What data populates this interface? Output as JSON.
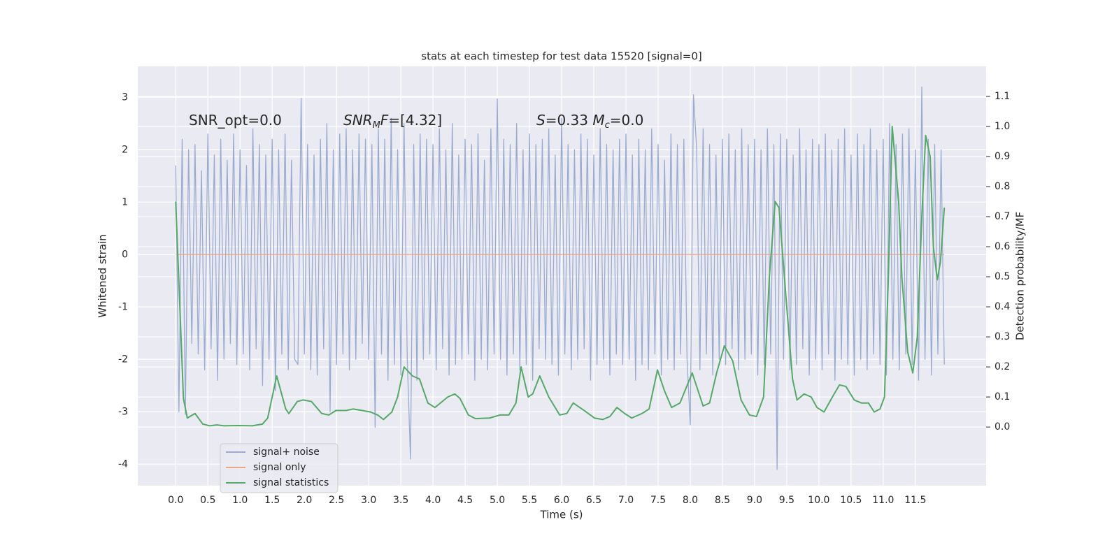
{
  "chart_data": {
    "type": "line",
    "title": "stats at each timestep for test data 15520 [signal=0]",
    "xlabel": "Time (s)",
    "ylabel": "Whitened strain",
    "y2label": "Detection probability/MF",
    "grid": true,
    "legend": "lower left",
    "xlim": [
      -0.59,
      12.6
    ],
    "ylim": [
      -4.41,
      3.59
    ],
    "y2lim": [
      -0.195,
      1.2
    ],
    "xticks": [
      {
        "value": 0,
        "label": "0.0"
      },
      0.5,
      {
        "value": 1,
        "label": "1.0"
      },
      1.5,
      {
        "value": 2,
        "label": "2.0"
      },
      2.5,
      {
        "value": 3,
        "label": "3.0"
      },
      3.5,
      {
        "value": 4,
        "label": "4.0"
      },
      4.5,
      {
        "value": 5,
        "label": "5.0"
      },
      5.5,
      {
        "value": 6,
        "label": "6.0"
      },
      6.5,
      {
        "value": 7,
        "label": "7.0"
      },
      7.5,
      {
        "value": 8,
        "label": "8.0"
      },
      8.5,
      {
        "value": 9,
        "label": "9.0"
      },
      9.5,
      {
        "value": 10,
        "label": "10.0"
      },
      10.5,
      {
        "value": 11,
        "label": "11.0"
      },
      11.5
    ],
    "yticks": [
      -4,
      -3,
      -2,
      -1,
      0,
      1,
      2,
      3
    ],
    "y2ticks": [
      {
        "value": 0,
        "label": "0.0"
      },
      0.1,
      0.2,
      0.3,
      0.4,
      0.5,
      0.6,
      0.7,
      0.8,
      0.9,
      {
        "value": 1,
        "label": "1.0"
      },
      1.1
    ],
    "annotations": [
      [
        {
          "text": "SNR_opt=0.0"
        }
      ],
      [
        {
          "text": "SNR",
          "italic": true
        },
        {
          "text": "M",
          "italic": true,
          "sub": true
        },
        {
          "text": "F",
          "italic": true
        },
        {
          "text": "=[4.32]"
        }
      ],
      [
        {
          "text": "S",
          "italic": true
        },
        {
          "text": "=0.33   "
        },
        {
          "text": "M",
          "italic": true
        },
        {
          "text": "c",
          "italic": true,
          "sub": true
        },
        {
          "text": "=0.0"
        }
      ]
    ],
    "series": [
      {
        "name": "signal+ noise",
        "color": "#9aabd0",
        "x": [
          0,
          0.05,
          0.1,
          0.15,
          0.2,
          0.25,
          0.3,
          0.35,
          0.4,
          0.45,
          0.5,
          0.55,
          0.6,
          0.65,
          0.7,
          0.75,
          0.8,
          0.85,
          0.9,
          0.95,
          1,
          1.05,
          1.1,
          1.15,
          1.2,
          1.25,
          1.3,
          1.35,
          1.4,
          1.45,
          1.5,
          1.55,
          1.6,
          1.65,
          1.7,
          1.75,
          1.8,
          1.85,
          1.9,
          1.95,
          2,
          2.05,
          2.1,
          2.15,
          2.2,
          2.25,
          2.3,
          2.35,
          2.4,
          2.45,
          2.5,
          2.55,
          2.6,
          2.65,
          2.7,
          2.75,
          2.8,
          2.85,
          2.9,
          2.95,
          3,
          3.05,
          3.1,
          3.15,
          3.2,
          3.25,
          3.3,
          3.35,
          3.4,
          3.45,
          3.5,
          3.55,
          3.6,
          3.65,
          3.7,
          3.75,
          3.8,
          3.85,
          3.9,
          3.95,
          4,
          4.05,
          4.1,
          4.15,
          4.2,
          4.25,
          4.3,
          4.35,
          4.4,
          4.45,
          4.5,
          4.55,
          4.6,
          4.65,
          4.7,
          4.75,
          4.8,
          4.85,
          4.9,
          4.95,
          5,
          5.05,
          5.1,
          5.15,
          5.2,
          5.25,
          5.3,
          5.35,
          5.4,
          5.45,
          5.5,
          5.55,
          5.6,
          5.65,
          5.7,
          5.75,
          5.8,
          5.85,
          5.9,
          5.95,
          6,
          6.05,
          6.1,
          6.15,
          6.2,
          6.25,
          6.3,
          6.35,
          6.4,
          6.45,
          6.5,
          6.55,
          6.6,
          6.65,
          6.7,
          6.75,
          6.8,
          6.85,
          6.9,
          6.95,
          7,
          7.05,
          7.1,
          7.15,
          7.2,
          7.25,
          7.3,
          7.35,
          7.4,
          7.45,
          7.5,
          7.55,
          7.6,
          7.65,
          7.7,
          7.75,
          7.8,
          7.85,
          7.9,
          7.95,
          8,
          8.05,
          8.1,
          8.15,
          8.2,
          8.25,
          8.3,
          8.35,
          8.4,
          8.45,
          8.5,
          8.55,
          8.6,
          8.65,
          8.7,
          8.75,
          8.8,
          8.85,
          8.9,
          8.95,
          9,
          9.05,
          9.1,
          9.15,
          9.2,
          9.25,
          9.3,
          9.35,
          9.4,
          9.45,
          9.5,
          9.55,
          9.6,
          9.65,
          9.7,
          9.75,
          9.8,
          9.85,
          9.9,
          9.95,
          10,
          10.05,
          10.1,
          10.15,
          10.2,
          10.25,
          10.3,
          10.35,
          10.4,
          10.45,
          10.5,
          10.55,
          10.6,
          10.65,
          10.7,
          10.75,
          10.8,
          10.85,
          10.9,
          10.95,
          11,
          11.05,
          11.1,
          11.15,
          11.2,
          11.25,
          11.3,
          11.35,
          11.4,
          11.45,
          11.5,
          11.55,
          11.6,
          11.65,
          11.7,
          11.75,
          11.8,
          11.85,
          11.9,
          11.95
        ],
        "values": [
          1.7,
          -3.0,
          2.2,
          -3.05,
          2.0,
          -1.7,
          2.1,
          -1.9,
          1.6,
          -2.2,
          2.3,
          -1.8,
          1.9,
          -2.4,
          2.2,
          -2.0,
          1.8,
          -1.7,
          2.3,
          -2.1,
          2.0,
          -1.9,
          1.7,
          -2.2,
          2.4,
          -1.8,
          2.1,
          -2.5,
          1.9,
          -2.0,
          2.2,
          -2.6,
          2.0,
          -1.9,
          2.3,
          -2.2,
          1.8,
          -2.0,
          -2.1,
          2.98,
          -1.9,
          2.1,
          -2.2,
          1.9,
          -2.3,
          2.2,
          -1.8,
          2.5,
          -3.0,
          2.0,
          -2.1,
          2.3,
          -1.9,
          2.4,
          -2.2,
          2.0,
          -2.0,
          2.3,
          -1.7,
          2.2,
          -2.0,
          2.1,
          -3.3,
          2.4,
          -1.9,
          2.2,
          -2.4,
          2.6,
          -2.1,
          2.0,
          -2.3,
          2.5,
          -2.0,
          -3.9,
          2.1,
          -2.4,
          2.3,
          -2.0,
          2.2,
          -1.9,
          2.1,
          -2.2,
          2.4,
          -1.8,
          2.0,
          -2.3,
          2.5,
          -2.1,
          1.9,
          -2.0,
          2.2,
          -1.9,
          2.1,
          -2.4,
          2.3,
          -2.0,
          1.8,
          -2.2,
          2.4,
          -1.9,
          2.97,
          -2.0,
          2.2,
          -2.3,
          2.1,
          -1.9,
          2.5,
          -2.2,
          2.0,
          -2.1,
          2.3,
          -2.4,
          2.1,
          -1.8,
          2.2,
          -2.0,
          2.4,
          -2.1,
          1.9,
          -2.3,
          2.6,
          -1.9,
          2.1,
          -2.2,
          2.0,
          -2.0,
          2.3,
          -1.8,
          2.2,
          -2.4,
          1.9,
          -2.1,
          2.4,
          -2.0,
          2.1,
          -2.3,
          2.0,
          -1.9,
          2.2,
          -2.1,
          2.3,
          -2.0,
          1.9,
          -2.4,
          2.2,
          -2.1,
          2.0,
          -2.2,
          2.4,
          -1.9,
          2.1,
          -2.3,
          1.8,
          -2.0,
          2.3,
          -2.2,
          2.1,
          -1.9,
          2.2,
          -2.0,
          -3.25,
          3.05,
          2.0,
          -2.2,
          2.4,
          -1.9,
          2.1,
          -2.3,
          1.9,
          -2.0,
          2.2,
          -2.1,
          2.3,
          -1.8,
          2.0,
          -2.2,
          2.4,
          -2.0,
          2.1,
          -1.9,
          2.2,
          -2.3,
          2.0,
          -2.1,
          2.4,
          -1.9,
          2.1,
          -4.1,
          2.3,
          -2.0,
          2.2,
          -2.2,
          1.9,
          -2.1,
          2.4,
          -1.8,
          2.0,
          -2.3,
          2.2,
          -2.0,
          2.1,
          -2.2,
          2.3,
          -1.9,
          2.0,
          -2.4,
          2.2,
          -2.0,
          2.4,
          -2.1,
          1.9,
          -2.3,
          2.3,
          -2.0,
          2.1,
          -2.2,
          2.4,
          -1.9,
          2.0,
          -2.1,
          2.2,
          -2.3,
          2.5,
          -2.0,
          2.1,
          -2.2,
          2.3,
          -1.9,
          2.4,
          -2.1,
          2.0,
          -2.4,
          3.2,
          -2.0,
          2.2,
          -2.3,
          2.1,
          -1.9,
          2.0,
          -2.1
        ]
      },
      {
        "name": "signal only",
        "color": "#e9a88a",
        "x": [
          0,
          11.95
        ],
        "values": [
          0,
          0
        ]
      },
      {
        "name": "signal statistics",
        "color": "#55a868",
        "axis": "y2",
        "x": [
          0,
          0.12,
          0.18,
          0.3,
          0.42,
          0.53,
          0.64,
          0.75,
          0.97,
          1.19,
          1.35,
          1.43,
          1.57,
          1.71,
          1.76,
          1.89,
          1.98,
          2.11,
          2.27,
          2.38,
          2.49,
          2.65,
          2.76,
          2.9,
          3.03,
          3.14,
          3.23,
          3.36,
          3.45,
          3.55,
          3.68,
          3.79,
          3.92,
          4.03,
          4.23,
          4.34,
          4.42,
          4.55,
          4.66,
          4.88,
          5.04,
          5.18,
          5.29,
          5.37,
          5.48,
          5.55,
          5.66,
          5.8,
          5.97,
          6.08,
          6.18,
          6.35,
          6.51,
          6.64,
          6.75,
          6.86,
          6.98,
          7.09,
          7.25,
          7.36,
          7.49,
          7.6,
          7.71,
          7.84,
          8.03,
          8.2,
          8.3,
          8.41,
          8.53,
          8.66,
          8.79,
          8.92,
          9.03,
          9.14,
          9.23,
          9.32,
          9.38,
          9.5,
          9.59,
          9.66,
          9.77,
          9.88,
          9.97,
          10.08,
          10.21,
          10.32,
          10.42,
          10.55,
          10.66,
          10.77,
          10.86,
          10.95,
          11.02,
          11.08,
          11.14,
          11.24,
          11.29,
          11.38,
          11.46,
          11.53,
          11.6,
          11.66,
          11.73,
          11.78,
          11.84,
          11.89,
          11.95
        ],
        "values": [
          0.75,
          0.095,
          0.03,
          0.045,
          0.01,
          0.004,
          0.007,
          0.004,
          0.005,
          0.004,
          0.01,
          0.03,
          0.17,
          0.06,
          0.045,
          0.085,
          0.09,
          0.085,
          0.045,
          0.04,
          0.055,
          0.055,
          0.06,
          0.055,
          0.05,
          0.04,
          0.025,
          0.05,
          0.1,
          0.2,
          0.17,
          0.16,
          0.08,
          0.065,
          0.1,
          0.11,
          0.095,
          0.04,
          0.028,
          0.03,
          0.04,
          0.04,
          0.08,
          0.2,
          0.1,
          0.11,
          0.17,
          0.1,
          0.04,
          0.045,
          0.08,
          0.055,
          0.03,
          0.025,
          0.035,
          0.065,
          0.045,
          0.03,
          0.045,
          0.06,
          0.19,
          0.12,
          0.065,
          0.08,
          0.18,
          0.07,
          0.08,
          0.18,
          0.27,
          0.22,
          0.09,
          0.04,
          0.035,
          0.1,
          0.5,
          0.75,
          0.73,
          0.4,
          0.16,
          0.09,
          0.11,
          0.1,
          0.065,
          0.05,
          0.1,
          0.14,
          0.135,
          0.09,
          0.08,
          0.08,
          0.05,
          0.06,
          0.1,
          0.5,
          1.0,
          0.75,
          0.5,
          0.25,
          0.18,
          0.3,
          0.7,
          0.97,
          0.9,
          0.6,
          0.49,
          0.55,
          0.73
        ]
      }
    ]
  }
}
